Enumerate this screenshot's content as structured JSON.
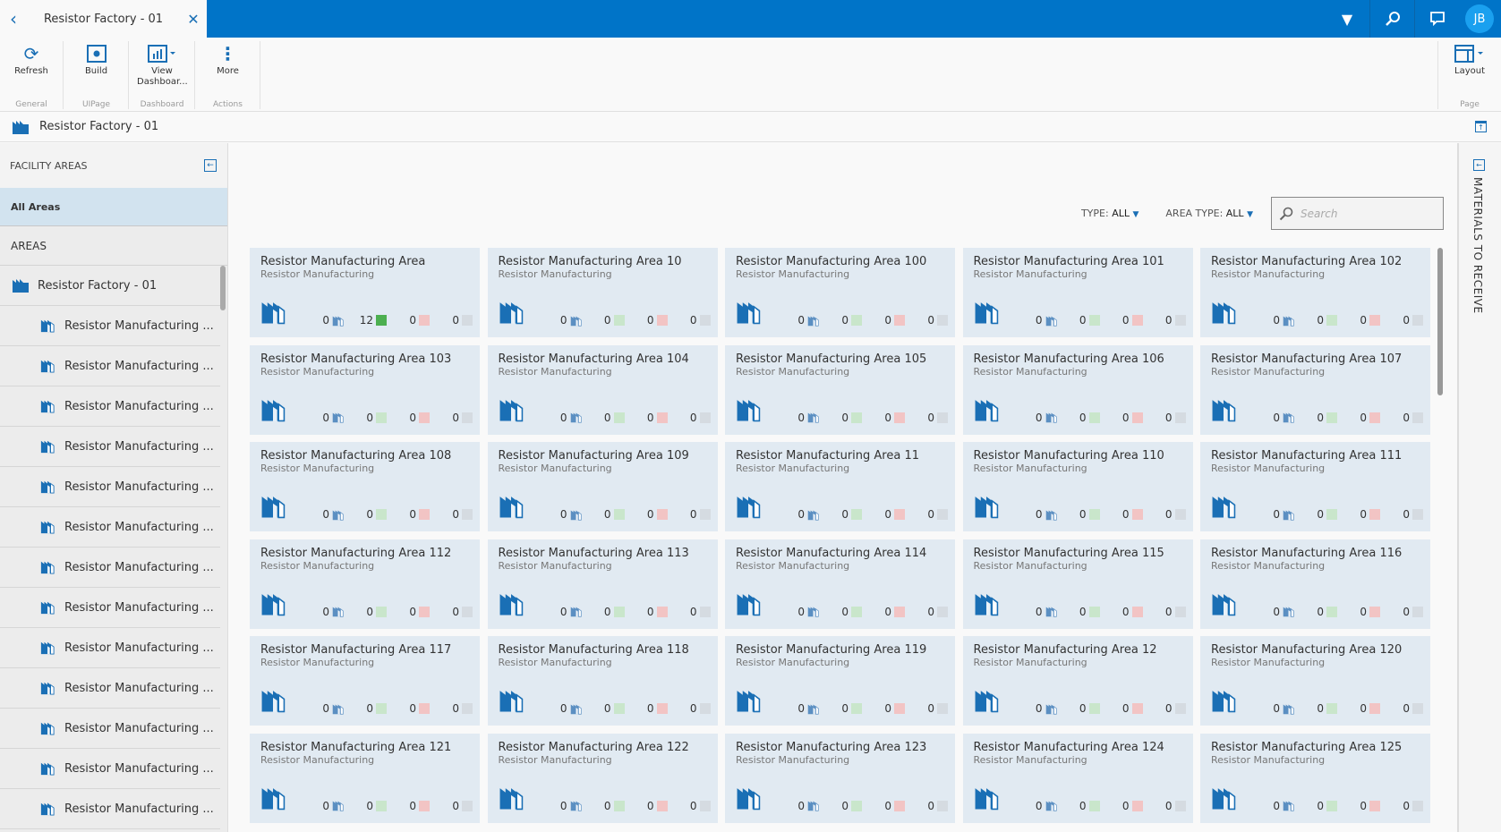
{
  "tab": {
    "title": "Resistor Factory - 01"
  },
  "header": {
    "avatar": "JB"
  },
  "ribbon": {
    "groups": [
      {
        "label": "General",
        "buttons": [
          "Refresh"
        ]
      },
      {
        "label": "UIPage",
        "buttons": [
          "Build"
        ]
      },
      {
        "label": "Dashboard",
        "buttons": [
          "View Dashboar..."
        ]
      },
      {
        "label": "Actions",
        "buttons": [
          "More"
        ]
      },
      {
        "label": "Page",
        "buttons": [
          "Layout"
        ]
      }
    ]
  },
  "breadcrumb": "Resistor Factory - 01",
  "sidebar": {
    "title": "FACILITY AREAS",
    "all": "All Areas",
    "section": "AREAS",
    "root": "Resistor Factory - 01",
    "items": [
      "Resistor Manufacturing ...",
      "Resistor Manufacturing ...",
      "Resistor Manufacturing ...",
      "Resistor Manufacturing ...",
      "Resistor Manufacturing ...",
      "Resistor Manufacturing ...",
      "Resistor Manufacturing ...",
      "Resistor Manufacturing ...",
      "Resistor Manufacturing ...",
      "Resistor Manufacturing ...",
      "Resistor Manufacturing ...",
      "Resistor Manufacturing ...",
      "Resistor Manufacturing ..."
    ]
  },
  "filters": {
    "type_label": "TYPE:",
    "type_value": "ALL",
    "area_type_label": "AREA TYPE:",
    "area_type_value": "ALL",
    "search_placeholder": "Search"
  },
  "right_panel": "MATERIALS TO RECEIVE",
  "colors": {
    "brand": "#0074c8",
    "card": "#e1eaf2",
    "green": "#4caf50",
    "red": "#f2c4c4",
    "grey": "#d8dde2"
  },
  "cards": [
    {
      "title": "Resistor Manufacturing Area",
      "subtitle": "Resistor Manufacturing",
      "counts": [
        0,
        12,
        0,
        0
      ]
    },
    {
      "title": "Resistor Manufacturing Area 10",
      "subtitle": "Resistor Manufacturing",
      "counts": [
        0,
        0,
        0,
        0
      ]
    },
    {
      "title": "Resistor Manufacturing Area 100",
      "subtitle": "Resistor Manufacturing",
      "counts": [
        0,
        0,
        0,
        0
      ]
    },
    {
      "title": "Resistor Manufacturing Area 101",
      "subtitle": "Resistor Manufacturing",
      "counts": [
        0,
        0,
        0,
        0
      ]
    },
    {
      "title": "Resistor Manufacturing Area 102",
      "subtitle": "Resistor Manufacturing",
      "counts": [
        0,
        0,
        0,
        0
      ]
    },
    {
      "title": "Resistor Manufacturing Area 103",
      "subtitle": "Resistor Manufacturing",
      "counts": [
        0,
        0,
        0,
        0
      ]
    },
    {
      "title": "Resistor Manufacturing Area 104",
      "subtitle": "Resistor Manufacturing",
      "counts": [
        0,
        0,
        0,
        0
      ]
    },
    {
      "title": "Resistor Manufacturing Area 105",
      "subtitle": "Resistor Manufacturing",
      "counts": [
        0,
        0,
        0,
        0
      ]
    },
    {
      "title": "Resistor Manufacturing Area 106",
      "subtitle": "Resistor Manufacturing",
      "counts": [
        0,
        0,
        0,
        0
      ]
    },
    {
      "title": "Resistor Manufacturing Area 107",
      "subtitle": "Resistor Manufacturing",
      "counts": [
        0,
        0,
        0,
        0
      ]
    },
    {
      "title": "Resistor Manufacturing Area 108",
      "subtitle": "Resistor Manufacturing",
      "counts": [
        0,
        0,
        0,
        0
      ]
    },
    {
      "title": "Resistor Manufacturing Area 109",
      "subtitle": "Resistor Manufacturing",
      "counts": [
        0,
        0,
        0,
        0
      ]
    },
    {
      "title": "Resistor Manufacturing Area 11",
      "subtitle": "Resistor Manufacturing",
      "counts": [
        0,
        0,
        0,
        0
      ]
    },
    {
      "title": "Resistor Manufacturing Area 110",
      "subtitle": "Resistor Manufacturing",
      "counts": [
        0,
        0,
        0,
        0
      ]
    },
    {
      "title": "Resistor Manufacturing Area 111",
      "subtitle": "Resistor Manufacturing",
      "counts": [
        0,
        0,
        0,
        0
      ]
    },
    {
      "title": "Resistor Manufacturing Area 112",
      "subtitle": "Resistor Manufacturing",
      "counts": [
        0,
        0,
        0,
        0
      ]
    },
    {
      "title": "Resistor Manufacturing Area 113",
      "subtitle": "Resistor Manufacturing",
      "counts": [
        0,
        0,
        0,
        0
      ]
    },
    {
      "title": "Resistor Manufacturing Area 114",
      "subtitle": "Resistor Manufacturing",
      "counts": [
        0,
        0,
        0,
        0
      ]
    },
    {
      "title": "Resistor Manufacturing Area 115",
      "subtitle": "Resistor Manufacturing",
      "counts": [
        0,
        0,
        0,
        0
      ]
    },
    {
      "title": "Resistor Manufacturing Area 116",
      "subtitle": "Resistor Manufacturing",
      "counts": [
        0,
        0,
        0,
        0
      ]
    },
    {
      "title": "Resistor Manufacturing Area 117",
      "subtitle": "Resistor Manufacturing",
      "counts": [
        0,
        0,
        0,
        0
      ]
    },
    {
      "title": "Resistor Manufacturing Area 118",
      "subtitle": "Resistor Manufacturing",
      "counts": [
        0,
        0,
        0,
        0
      ]
    },
    {
      "title": "Resistor Manufacturing Area 119",
      "subtitle": "Resistor Manufacturing",
      "counts": [
        0,
        0,
        0,
        0
      ]
    },
    {
      "title": "Resistor Manufacturing Area 12",
      "subtitle": "Resistor Manufacturing",
      "counts": [
        0,
        0,
        0,
        0
      ]
    },
    {
      "title": "Resistor Manufacturing Area 120",
      "subtitle": "Resistor Manufacturing",
      "counts": [
        0,
        0,
        0,
        0
      ]
    },
    {
      "title": "Resistor Manufacturing Area 121",
      "subtitle": "Resistor Manufacturing",
      "counts": [
        0,
        0,
        0,
        0
      ]
    },
    {
      "title": "Resistor Manufacturing Area 122",
      "subtitle": "Resistor Manufacturing",
      "counts": [
        0,
        0,
        0,
        0
      ]
    },
    {
      "title": "Resistor Manufacturing Area 123",
      "subtitle": "Resistor Manufacturing",
      "counts": [
        0,
        0,
        0,
        0
      ]
    },
    {
      "title": "Resistor Manufacturing Area 124",
      "subtitle": "Resistor Manufacturing",
      "counts": [
        0,
        0,
        0,
        0
      ]
    },
    {
      "title": "Resistor Manufacturing Area 125",
      "subtitle": "Resistor Manufacturing",
      "counts": [
        0,
        0,
        0,
        0
      ]
    }
  ]
}
